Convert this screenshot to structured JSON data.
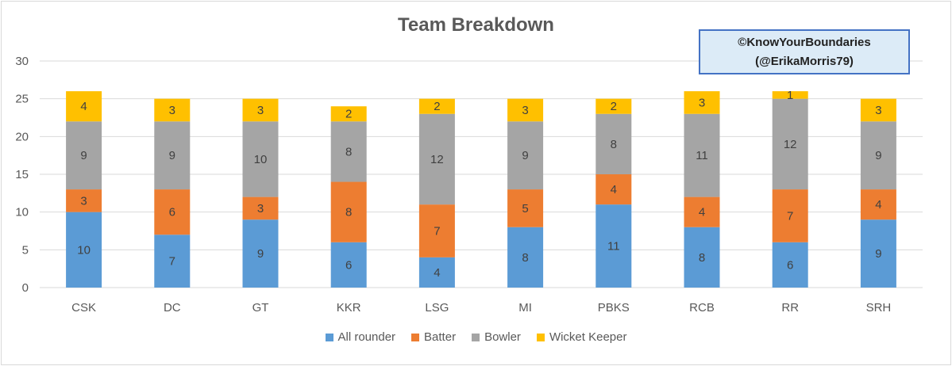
{
  "chart_data": {
    "type": "bar",
    "stacked": true,
    "title": "Team Breakdown",
    "categories": [
      "CSK",
      "DC",
      "GT",
      "KKR",
      "LSG",
      "MI",
      "PBKS",
      "RCB",
      "RR",
      "SRH"
    ],
    "series": [
      {
        "name": "All rounder",
        "color": "#5b9bd5",
        "values": [
          10,
          7,
          9,
          6,
          4,
          8,
          11,
          8,
          6,
          9
        ]
      },
      {
        "name": "Batter",
        "color": "#ed7d31",
        "values": [
          3,
          6,
          3,
          8,
          7,
          5,
          4,
          4,
          7,
          4
        ]
      },
      {
        "name": "Bowler",
        "color": "#a5a5a5",
        "values": [
          9,
          9,
          10,
          8,
          12,
          9,
          8,
          11,
          12,
          9
        ]
      },
      {
        "name": "Wicket Keeper",
        "color": "#ffc000",
        "values": [
          4,
          3,
          3,
          2,
          2,
          3,
          2,
          3,
          1,
          3
        ]
      }
    ],
    "ylim": [
      0,
      30
    ],
    "yticks": [
      "0",
      "5",
      "10",
      "15",
      "20",
      "25",
      "30"
    ],
    "grid": true,
    "legend_position": "bottom"
  },
  "watermark": {
    "line1": "©KnowYourBoundaries",
    "line2": "(@ErikaMorris79)"
  }
}
